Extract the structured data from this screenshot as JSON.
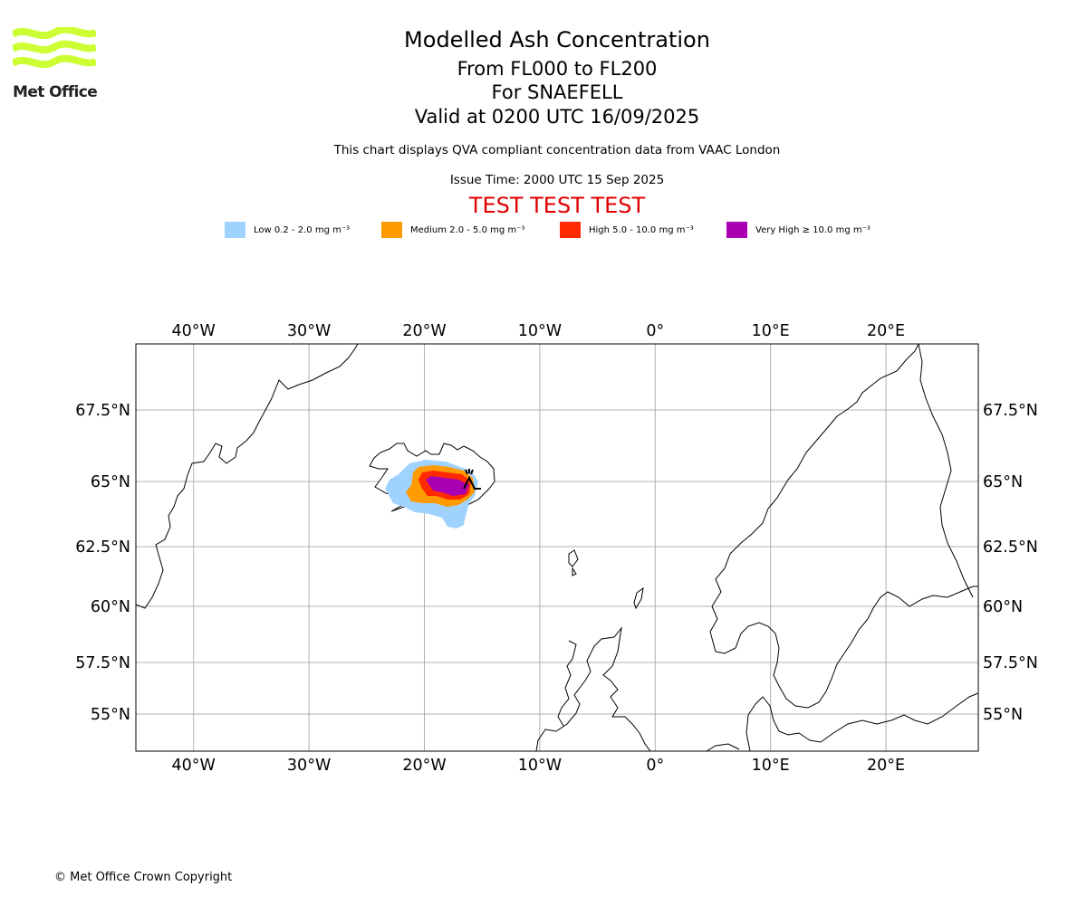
{
  "logo": {
    "text": "Met Office",
    "colors": {
      "waves": "#ccff33"
    }
  },
  "header": {
    "title": "Modelled Ash Concentration",
    "subtitle_levels": "From FL000 to FL200",
    "subtitle_volcano": "For SNAEFELL",
    "subtitle_valid": "Valid at 0200 UTC 16/09/2025",
    "compliance_note": "This chart displays QVA compliant concentration data from VAAC London",
    "issue_time": "Issue Time: 2000 UTC 15 Sep 2025",
    "test_banner": "TEST TEST TEST"
  },
  "legend": [
    {
      "label": "Low 0.2 - 2.0 mg m⁻³",
      "color": "#a0d2ff"
    },
    {
      "label": "Medium 2.0 - 5.0 mg m⁻³",
      "color": "#ff9a00"
    },
    {
      "label": "High 5.0 - 10.0 mg m⁻³",
      "color": "#ff2a00"
    },
    {
      "label": "Very High  ≥  10.0 mg m⁻³",
      "color": "#aa00b4"
    }
  ],
  "map": {
    "lon_range": [
      -45,
      28
    ],
    "lat_range": [
      53.5,
      70
    ],
    "lon_ticks": [
      {
        "value": -40,
        "label": "40°W"
      },
      {
        "value": -30,
        "label": "30°W"
      },
      {
        "value": -20,
        "label": "20°W"
      },
      {
        "value": -10,
        "label": "10°W"
      },
      {
        "value": 0,
        "label": "0°"
      },
      {
        "value": 10,
        "label": "10°E"
      },
      {
        "value": 20,
        "label": "20°E"
      }
    ],
    "lat_ticks": [
      {
        "value": 67.5,
        "label": "67.5°N"
      },
      {
        "value": 65,
        "label": "65°N"
      },
      {
        "value": 62.5,
        "label": "62.5°N"
      },
      {
        "value": 60,
        "label": "60°N"
      },
      {
        "value": 57.5,
        "label": "57.5°N"
      },
      {
        "value": 55,
        "label": "55°N"
      }
    ],
    "gridlines": true,
    "volcano": {
      "name": "SNAEFELL",
      "lon": -15.5,
      "lat": 64.8,
      "symbol": "volcano-icon"
    }
  },
  "footer": {
    "copyright": "© Met Office Crown Copyright"
  }
}
